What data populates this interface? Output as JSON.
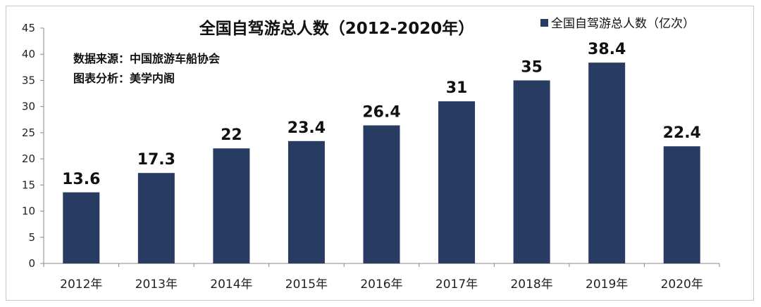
{
  "chart_data": {
    "type": "bar",
    "title": "全国自驾游总人数（2012-2020年）",
    "notes": [
      "数据来源：中国旅游车船协会",
      "图表分析：美学内阁"
    ],
    "categories": [
      "2012年",
      "2013年",
      "2014年",
      "2015年",
      "2016年",
      "2017年",
      "2018年",
      "2019年",
      "2020年"
    ],
    "series": [
      {
        "name": "全国自驾游总人数（亿次）",
        "values": [
          13.6,
          17.3,
          22,
          23.4,
          26.4,
          31,
          35,
          38.4,
          22.4
        ]
      }
    ],
    "data_labels": [
      "13.6",
      "17.3",
      "22",
      "23.4",
      "26.4",
      "31",
      "35",
      "38.4",
      "22.4"
    ],
    "y_ticks": [
      "0",
      "5",
      "10",
      "15",
      "20",
      "25",
      "30",
      "35",
      "40",
      "45"
    ],
    "ylim": [
      0,
      45
    ],
    "grid": false,
    "legend_position": "top-right",
    "bar_color": "#283b63"
  }
}
